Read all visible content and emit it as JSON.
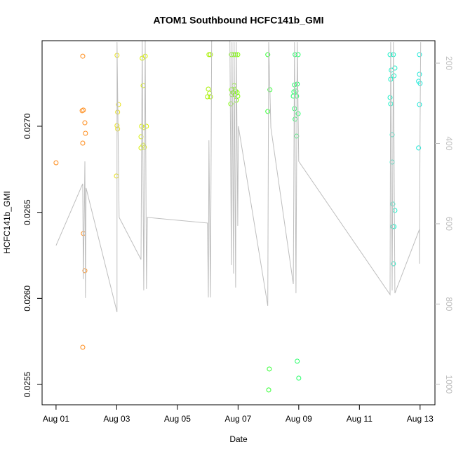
{
  "chart_data": {
    "type": "scatter",
    "title": "ATOM1 Southbound HCFC141b_GMI",
    "x_label": "Date",
    "y_label": "HCFC141b_GMI",
    "xlim": [
      -0.46,
      12.49
    ],
    "xticks": [
      {
        "value": 0,
        "label": "Aug 01"
      },
      {
        "value": 2,
        "label": "Aug 03"
      },
      {
        "value": 4,
        "label": "Aug 05"
      },
      {
        "value": 6,
        "label": "Aug 07"
      },
      {
        "value": 8,
        "label": "Aug 09"
      },
      {
        "value": 10,
        "label": "Aug 11"
      },
      {
        "value": 12,
        "label": "Aug 13"
      }
    ],
    "ylim": [
      0.025382,
      0.027497
    ],
    "yticks": [
      {
        "value": 0.0255,
        "label": "0.0255"
      },
      {
        "value": 0.026,
        "label": "0.0260"
      },
      {
        "value": 0.0265,
        "label": "0.0265"
      },
      {
        "value": 0.027,
        "label": "0.0270"
      }
    ],
    "y2lim": [
      1051,
      144
    ],
    "y2ticks": [
      200,
      400,
      600,
      800,
      1000
    ],
    "y2_color": "#bebebe",
    "series": [
      {
        "color": "#FF8C1A",
        "x": [
          0,
          0.88,
          0.86,
          0.9,
          0.95,
          0.97,
          0.88,
          0.9,
          0.95,
          0.88
        ],
        "values": [
          0.026788,
          0.027407,
          0.02709,
          0.027094,
          0.02702,
          0.026959,
          0.026902,
          0.026377,
          0.026161,
          0.025716
        ]
      },
      {
        "color": "#E8E01A",
        "x": [
          2.01,
          2.06,
          2.03,
          2.01,
          2.03,
          1.99
        ],
        "values": [
          0.027412,
          0.027126,
          0.027082,
          0.027004,
          0.026984,
          0.026711
        ]
      },
      {
        "color": "#D8F000",
        "x": [
          2.84,
          2.94,
          2.87,
          2.82,
          2.89,
          2.98,
          2.8,
          2.87,
          2.8,
          2.91
        ],
        "values": [
          0.027395,
          0.027407,
          0.027236,
          0.027,
          0.026992,
          0.027,
          0.026939,
          0.02689,
          0.026874,
          0.026878
        ]
      },
      {
        "color": "#A8F000",
        "x": [
          5.04,
          5.09,
          5.02,
          5.06,
          4.99,
          5.09
        ],
        "values": [
          0.027416,
          0.027416,
          0.027216,
          0.027192,
          0.027171,
          0.027171
        ]
      },
      {
        "color": "#7CFF00",
        "x": [
          5.78,
          5.85,
          5.92,
          5.99,
          5.87,
          5.78,
          5.92,
          5.83,
          5.97,
          5.8,
          5.9,
          5.99,
          5.76,
          5.94
        ],
        "values": [
          0.027416,
          0.027416,
          0.027416,
          0.027416,
          0.027236,
          0.027212,
          0.027204,
          0.027196,
          0.027196,
          0.027183,
          0.027183,
          0.027175,
          0.02713,
          0.027151
        ]
      },
      {
        "color": "#33FF33",
        "x": [
          6.98,
          7.05,
          6.98,
          7.03,
          7.01
        ],
        "values": [
          0.027416,
          0.027212,
          0.027086,
          0.02559,
          0.025468
        ]
      },
      {
        "color": "#22FF66",
        "x": [
          7.88,
          7.98,
          7.86,
          7.95,
          7.84,
          7.91,
          7.82,
          7.93,
          7.86,
          7.98,
          7.88,
          7.93,
          7.95,
          8.0
        ],
        "values": [
          0.027416,
          0.027416,
          0.02724,
          0.027245,
          0.0272,
          0.027204,
          0.027175,
          0.027175,
          0.027102,
          0.027073,
          0.027041,
          0.026943,
          0.025635,
          0.025537
        ]
      },
      {
        "color": "#1AF0C8",
        "x": [
          11.01,
          11.12,
          11.05,
          11.17,
          11.03,
          11.14,
          11.01,
          11.03,
          11.08,
          11.08,
          11.1,
          11.17,
          11.1,
          11.14,
          11.12
        ],
        "values": [
          0.027416,
          0.027416,
          0.027326,
          0.027338,
          0.027273,
          0.027293,
          0.027167,
          0.02713,
          0.026951,
          0.026792,
          0.026548,
          0.026511,
          0.026417,
          0.026417,
          0.026201
        ]
      },
      {
        "color": "#1AE8D8",
        "x": [
          11.98,
          11.98,
          11.95,
          12.0,
          11.98,
          11.95
        ],
        "values": [
          0.027416,
          0.027302,
          0.027261,
          0.027249,
          0.027126,
          0.026874
        ]
      },
      {
        "type": "line",
        "axis": "y2",
        "color": "#bebebe",
        "x": [
          0,
          0.88,
          0.9,
          0.95,
          0.97,
          0.99,
          2.01,
          2.01,
          2.08,
          2.8,
          2.84,
          2.89,
          2.94,
          2.98,
          3.01,
          4.99,
          5.02,
          5.04,
          5.09,
          5.13,
          5.73,
          5.78,
          5.8,
          5.85,
          5.87,
          5.92,
          5.94,
          5.99,
          6.01,
          6.98,
          7.01,
          7.08,
          7.82,
          7.86,
          7.91,
          7.95,
          8.0,
          11.01,
          11.03,
          11.08,
          11.12,
          11.17,
          11.98,
          11.98,
          12.0,
          12.02
        ],
        "values": [
          654.1,
          500.4,
          738.0,
          444.5,
          785.1,
          510.9,
          820.1,
          147.6,
          584.3,
          689.1,
          144.1,
          765.9,
          144.1,
          762.4,
          584.3,
          598.2,
          783.4,
          392.1,
          783.4,
          144.1,
          144.1,
          703.0,
          147.6,
          724.0,
          147.6,
          758.9,
          147.6,
          605.2,
          357.2,
          804.4,
          147.6,
          360.7,
          750.2,
          147.6,
          772.9,
          147.6,
          444.5,
          776.4,
          147.6,
          765.9,
          147.6,
          772.9,
          614.0,
          699.6,
          357.2,
          147.6
        ]
      }
    ]
  }
}
